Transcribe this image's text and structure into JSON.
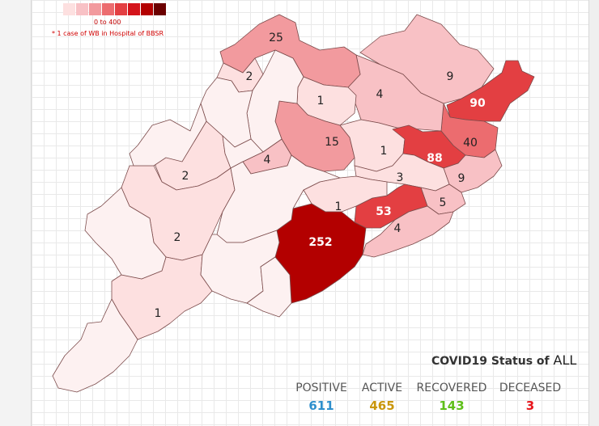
{
  "legend": {
    "colors": [
      "#fde0e0",
      "#f8c1c5",
      "#f29a9e",
      "#ec6c6f",
      "#e33f42",
      "#d4141b",
      "#b30000",
      "#6b0000"
    ],
    "range_label": "0 to 400",
    "note": "* 1 case of WB in Hospital of BBSR"
  },
  "districts": [
    {
      "id": "d-mayurbhanj",
      "label": "9",
      "value": 9
    },
    {
      "id": "d-balasore",
      "label": "90",
      "value": 90
    },
    {
      "id": "d-bhadrak",
      "label": "40",
      "value": 40
    },
    {
      "id": "d-keonjhar",
      "label": "4",
      "value": 4
    },
    {
      "id": "d-sundargarh",
      "label": "25",
      "value": 25
    },
    {
      "id": "d-jharsuguda",
      "label": "2",
      "value": 2
    },
    {
      "id": "d-deogarh",
      "label": "1",
      "value": 1
    },
    {
      "id": "d-angul",
      "label": "15",
      "value": 15
    },
    {
      "id": "d-dhenkanal",
      "label": "1",
      "value": 1
    },
    {
      "id": "d-jajpur",
      "label": "88",
      "value": 88
    },
    {
      "id": "d-kendrapara",
      "label": "9",
      "value": 9
    },
    {
      "id": "d-cuttack",
      "label": "3",
      "value": 3
    },
    {
      "id": "d-jagatsinghpur",
      "label": "5",
      "value": 5
    },
    {
      "id": "d-khordha",
      "label": "53",
      "value": 53
    },
    {
      "id": "d-puri",
      "label": "4",
      "value": 4
    },
    {
      "id": "d-nayagarh",
      "label": "1",
      "value": 1
    },
    {
      "id": "d-ganjam",
      "label": "252",
      "value": 252
    },
    {
      "id": "d-boudh",
      "label": "4",
      "value": 4
    },
    {
      "id": "d-balangir",
      "label": "2",
      "value": 2
    },
    {
      "id": "d-kalahandi",
      "label": "2",
      "value": 2
    },
    {
      "id": "d-koraput",
      "label": "1",
      "value": 1
    },
    {
      "id": "d-sambalpur",
      "label": "",
      "value": 0
    },
    {
      "id": "d-bargarh",
      "label": "",
      "value": 0
    },
    {
      "id": "d-subarnapur",
      "label": "",
      "value": 0
    },
    {
      "id": "d-nuapada",
      "label": "",
      "value": 0
    },
    {
      "id": "d-kandhamal",
      "label": "",
      "value": 0
    },
    {
      "id": "d-rayagada",
      "label": "",
      "value": 0
    },
    {
      "id": "d-gajapati",
      "label": "",
      "value": 0
    },
    {
      "id": "d-nabarangpur",
      "label": "",
      "value": 0
    },
    {
      "id": "d-malkangiri",
      "label": "",
      "value": 0
    }
  ],
  "status": {
    "title": "COVID19 Status of",
    "filter": "ALL",
    "positive": {
      "label": "POSITIVE",
      "value": "611",
      "color": "#2e8fcc"
    },
    "active": {
      "label": "ACTIVE",
      "value": "465",
      "color": "#c9960c"
    },
    "recovered": {
      "label": "RECOVERED",
      "value": "143",
      "color": "#5fbf1a"
    },
    "deceased": {
      "label": "DECEASED",
      "value": "3",
      "color": "#e8161c"
    }
  }
}
